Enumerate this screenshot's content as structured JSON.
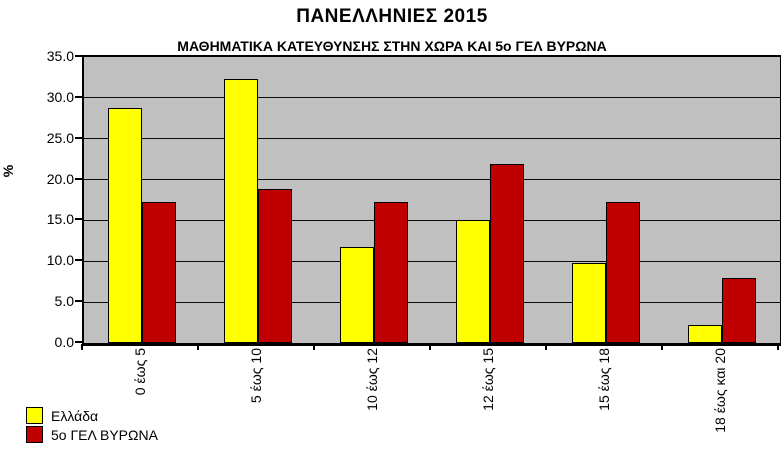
{
  "chart_data": {
    "type": "bar",
    "title": "ΠΑΝΕΛΛΗΝΙΕΣ 2015",
    "subtitle": "ΜΑΘΗΜΑΤΙΚΑ ΚΑΤΕΥΘΥΝΣΗΣ ΣΤΗΝ ΧΩΡΑ ΚΑΙ 5ο ΓΕΛ ΒΥΡΩΝΑ",
    "ylabel": "%",
    "xlabel": "",
    "ylim": [
      0,
      35
    ],
    "ytick_step": 5,
    "ytick_decimals": 1,
    "grid": true,
    "legend_position": "bottom-left",
    "plot_background_color": "#C0C0C0",
    "categories": [
      "0 έως 5",
      "5 έως 10",
      "10 έως 12",
      "12 έως 15",
      "15 έως 18",
      "18 έως και 20"
    ],
    "series": [
      {
        "name": "Ελλάδα",
        "color": "#FFFF00",
        "values": [
          28.8,
          32.3,
          11.8,
          15.1,
          9.8,
          2.2
        ]
      },
      {
        "name": "5ο ΓΕΛ ΒΥΡΩΝΑ",
        "color": "#C00000",
        "values": [
          17.2,
          18.8,
          17.2,
          21.9,
          17.2,
          7.9
        ]
      }
    ]
  }
}
